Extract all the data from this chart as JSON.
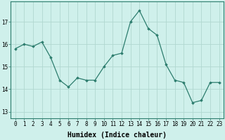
{
  "x": [
    0,
    1,
    2,
    3,
    4,
    5,
    6,
    7,
    8,
    9,
    10,
    11,
    12,
    13,
    14,
    15,
    16,
    17,
    18,
    19,
    20,
    21,
    22,
    23
  ],
  "y": [
    15.8,
    16.0,
    15.9,
    16.1,
    15.4,
    14.4,
    14.1,
    14.5,
    14.4,
    14.4,
    15.0,
    15.5,
    15.6,
    17.0,
    17.5,
    16.7,
    16.4,
    15.1,
    14.4,
    14.3,
    13.4,
    13.5,
    14.3,
    14.3
  ],
  "line_color": "#2d7d6e",
  "marker": "D",
  "marker_size": 1.8,
  "bg_color": "#cff0eb",
  "grid_color": "#b0d8d0",
  "xlabel": "Humidex (Indice chaleur)",
  "xlabel_fontsize": 7,
  "ylabel_ticks": [
    13,
    14,
    15,
    16,
    17
  ],
  "xlim": [
    -0.5,
    23.5
  ],
  "ylim": [
    12.7,
    17.9
  ],
  "xtick_labels": [
    "0",
    "1",
    "2",
    "3",
    "4",
    "5",
    "6",
    "7",
    "8",
    "9",
    "10",
    "11",
    "12",
    "13",
    "14",
    "15",
    "16",
    "17",
    "18",
    "19",
    "20",
    "21",
    "22",
    "23"
  ],
  "tick_fontsize": 5.5,
  "lw": 0.9
}
